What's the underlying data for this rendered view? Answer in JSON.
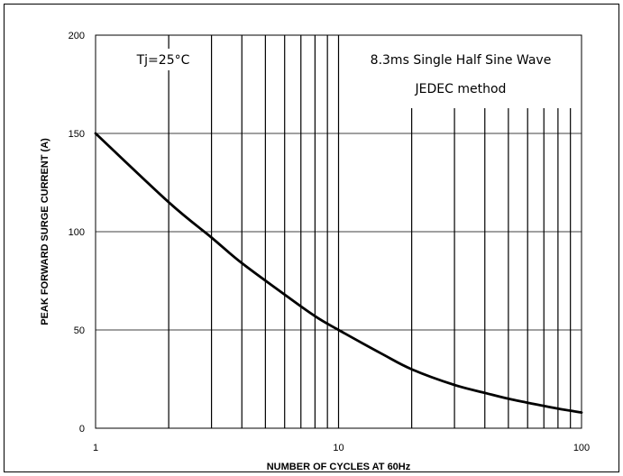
{
  "chart_data": {
    "type": "line",
    "xscale": "log",
    "xlim": [
      1,
      100
    ],
    "ylim": [
      0,
      200
    ],
    "xticks": [
      1,
      10,
      100
    ],
    "xtick_labels": [
      "1",
      "10",
      "100"
    ],
    "yticks": [
      0,
      50,
      100,
      150,
      200
    ],
    "ytick_labels": [
      "0",
      "50",
      "100",
      "150",
      "200"
    ],
    "xlabel": "NUMBER OF CYCLES AT 60Hz",
    "ylabel": "PEAK FORWARD SURGE CURRENT (A)",
    "grid": true,
    "annotations": {
      "temperature": "Tj=25°C",
      "waveform": "8.3ms Single Half Sine Wave",
      "method": "JEDEC method"
    },
    "series": [
      {
        "color": "#000000",
        "x": [
          1,
          2,
          3,
          4,
          6,
          8,
          10,
          15,
          20,
          30,
          40,
          50,
          60,
          80,
          100
        ],
        "y": [
          150,
          115,
          97,
          84,
          68,
          57,
          50,
          38,
          30,
          22,
          18,
          15,
          13,
          10,
          8
        ]
      }
    ]
  }
}
